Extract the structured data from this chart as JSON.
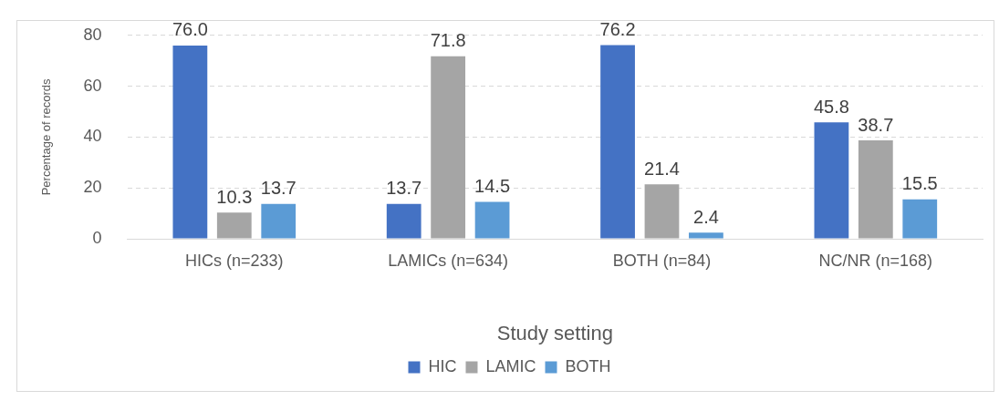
{
  "chart_data": {
    "type": "bar",
    "xlabel": "Study setting",
    "ylabel": "Percentage of records",
    "categories": [
      "HICs (n=233)",
      "LAMICs (n=634)",
      "BOTH (n=84)",
      "NC/NR (n=168)"
    ],
    "series": [
      {
        "name": "HIC",
        "color": "#4472c4",
        "values": [
          76.0,
          13.7,
          76.2,
          45.8
        ],
        "value_labels": [
          "76.0",
          "13.7",
          "76.2",
          "45.8"
        ]
      },
      {
        "name": "LAMIC",
        "color": "#a5a5a5",
        "values": [
          10.3,
          71.8,
          21.4,
          38.7
        ],
        "value_labels": [
          "10.3",
          "71.8",
          "21.4",
          "38.7"
        ]
      },
      {
        "name": "BOTH",
        "color": "#5b9bd5",
        "values": [
          13.7,
          14.5,
          2.4,
          15.5
        ],
        "value_labels": [
          "13.7",
          "14.5",
          "2.4",
          "15.5"
        ]
      }
    ],
    "ylim": [
      0,
      80
    ],
    "yticks": [
      0,
      20,
      40,
      60,
      80
    ],
    "grid": "y",
    "legend": "bottom"
  }
}
